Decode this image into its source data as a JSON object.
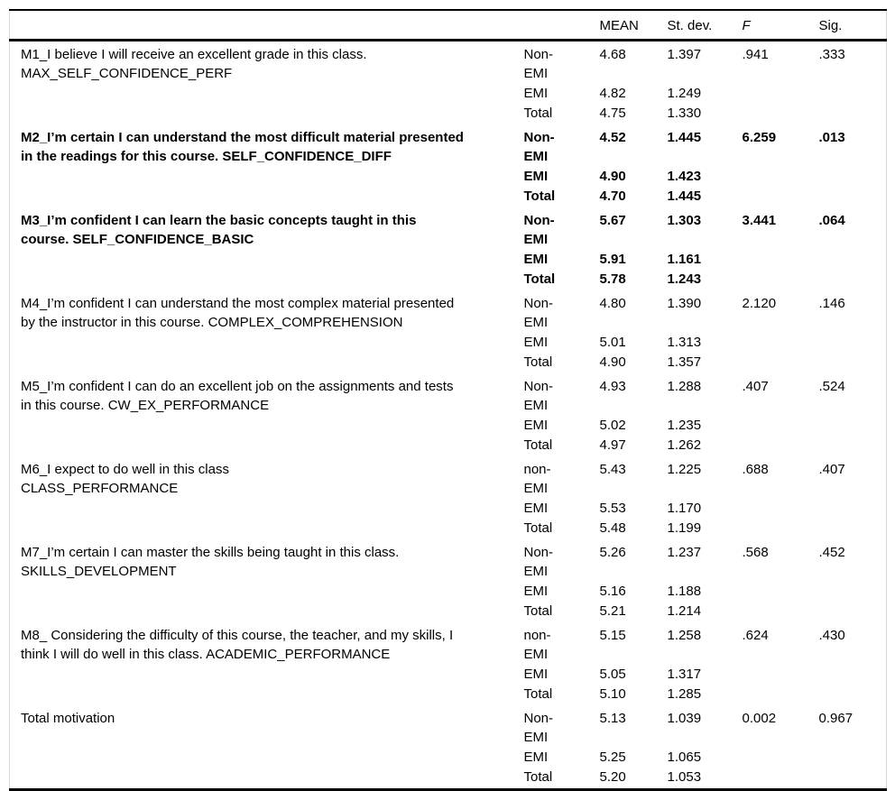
{
  "table": {
    "header": {
      "item": "",
      "group": "",
      "mean": "MEAN",
      "stdev": "St. dev.",
      "f": "F",
      "sig": "Sig."
    },
    "rows": [
      {
        "label": "M1_I believe I will receive an excellent grade in this class.\nMAX_SELF_CONFIDENCE_PERF",
        "bold": false,
        "f": ".941",
        "sig": ".333",
        "groups": [
          {
            "name": "Non-\nEMI",
            "mean": "4.68",
            "stdev": "1.397"
          },
          {
            "name": "EMI",
            "mean": "4.82",
            "stdev": "1.249"
          },
          {
            "name": "Total",
            "mean": "4.75",
            "stdev": "1.330"
          }
        ]
      },
      {
        "label": "M2_I’m certain I can understand the most difficult material presented\nin the readings for this course. SELF_CONFIDENCE_DIFF",
        "bold": true,
        "f": "6.259",
        "sig": ".013",
        "groups": [
          {
            "name": "Non-\nEMI",
            "mean": "4.52",
            "stdev": "1.445"
          },
          {
            "name": "EMI",
            "mean": "4.90",
            "stdev": "1.423"
          },
          {
            "name": "Total",
            "mean": "4.70",
            "stdev": "1.445"
          }
        ]
      },
      {
        "label": "M3_I’m confident I can learn the basic concepts taught in this\ncourse. SELF_CONFIDENCE_BASIC",
        "bold": true,
        "f": "3.441",
        "sig": ".064",
        "groups": [
          {
            "name": "Non-\nEMI",
            "mean": "5.67",
            "stdev": "1.303"
          },
          {
            "name": "EMI",
            "mean": "5.91",
            "stdev": "1.161"
          },
          {
            "name": "Total",
            "mean": "5.78",
            "stdev": "1.243"
          }
        ]
      },
      {
        "label": "M4_I’m confident I can understand the most complex material presented\nby the instructor in this course. COMPLEX_COMPREHENSION",
        "bold": false,
        "f": "2.120",
        "sig": ".146",
        "groups": [
          {
            "name": "Non-\nEMI",
            "mean": "4.80",
            "stdev": "1.390"
          },
          {
            "name": "EMI",
            "mean": "5.01",
            "stdev": "1.313"
          },
          {
            "name": "Total",
            "mean": "4.90",
            "stdev": "1.357"
          }
        ]
      },
      {
        "label": "M5_I’m confident I can do an excellent job on the assignments and tests\nin this course. CW_EX_PERFORMANCE",
        "bold": false,
        "f": ".407",
        "sig": ".524",
        "groups": [
          {
            "name": "Non-\nEMI",
            "mean": "4.93",
            "stdev": "1.288"
          },
          {
            "name": "EMI",
            "mean": "5.02",
            "stdev": "1.235"
          },
          {
            "name": "Total",
            "mean": "4.97",
            "stdev": "1.262"
          }
        ]
      },
      {
        "label": "M6_I expect to do well in this class\nCLASS_PERFORMANCE",
        "bold": false,
        "f": ".688",
        "sig": ".407",
        "groups": [
          {
            "name": "non-\nEMI",
            "mean": "5.43",
            "stdev": "1.225"
          },
          {
            "name": "EMI",
            "mean": "5.53",
            "stdev": "1.170"
          },
          {
            "name": "Total",
            "mean": "5.48",
            "stdev": "1.199"
          }
        ]
      },
      {
        "label": "M7_I’m certain I can master the skills being taught in this class.\nSKILLS_DEVELOPMENT",
        "bold": false,
        "f": ".568",
        "sig": ".452",
        "groups": [
          {
            "name": "Non-\nEMI",
            "mean": "5.26",
            "stdev": "1.237"
          },
          {
            "name": "EMI",
            "mean": "5.16",
            "stdev": "1.188"
          },
          {
            "name": "Total",
            "mean": "5.21",
            "stdev": "1.214"
          }
        ]
      },
      {
        "label": "M8_ Considering the difficulty of this course, the teacher, and my skills, I\nthink I will do well in this class. ACADEMIC_PERFORMANCE",
        "bold": false,
        "f": ".624",
        "sig": ".430",
        "groups": [
          {
            "name": "non-\nEMI",
            "mean": "5.15",
            "stdev": "1.258"
          },
          {
            "name": "EMI",
            "mean": "5.05",
            "stdev": "1.317"
          },
          {
            "name": "Total",
            "mean": "5.10",
            "stdev": "1.285"
          }
        ]
      },
      {
        "label": "Total motivation",
        "bold": false,
        "f": "0.002",
        "sig": "0.967",
        "groups": [
          {
            "name": "Non-\nEMI",
            "mean": "5.13",
            "stdev": "1.039"
          },
          {
            "name": "EMI",
            "mean": "5.25",
            "stdev": "1.065"
          },
          {
            "name": "Total",
            "mean": "5.20",
            "stdev": "1.053"
          }
        ]
      }
    ]
  },
  "colors": {
    "rule": "#000000",
    "side_border": "#d9d9d9",
    "text": "#000000",
    "background": "#ffffff"
  }
}
